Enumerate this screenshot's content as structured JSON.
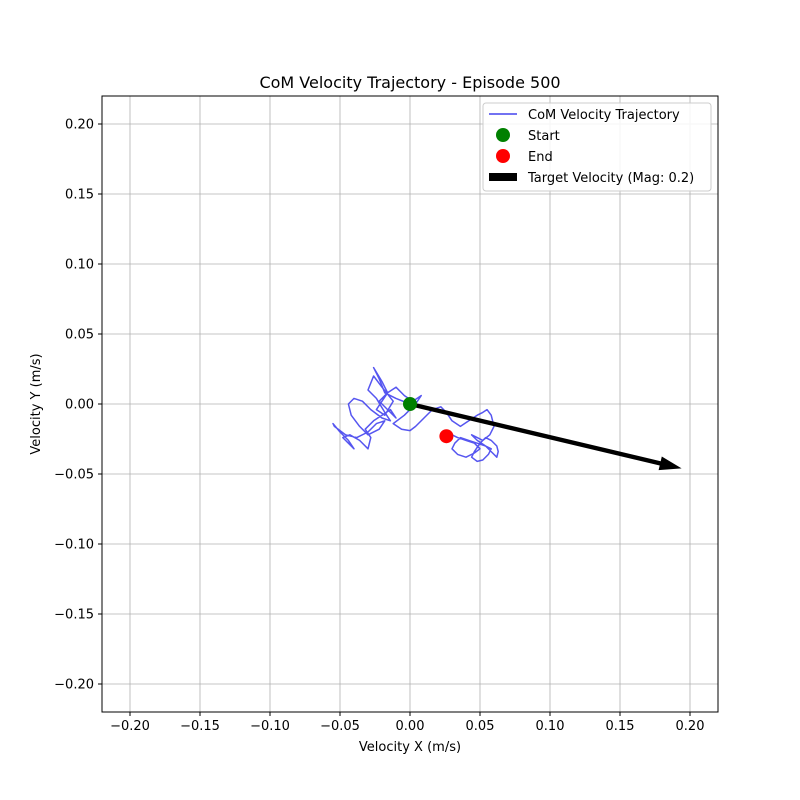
{
  "chart_data": {
    "type": "line",
    "title": "CoM Velocity Trajectory - Episode 500",
    "xlabel": "Velocity X (m/s)",
    "ylabel": "Velocity Y (m/s)",
    "xlim": [
      -0.22,
      0.22
    ],
    "ylim": [
      -0.22,
      0.22
    ],
    "grid": true,
    "legend_position": "top-right",
    "x_ticks": [
      -0.2,
      -0.15,
      -0.1,
      -0.05,
      0.0,
      0.05,
      0.1,
      0.15,
      0.2
    ],
    "y_ticks": [
      -0.2,
      -0.15,
      -0.1,
      -0.05,
      0.0,
      0.05,
      0.1,
      0.15,
      0.2
    ],
    "x_tick_labels": [
      "−0.20",
      "−0.15",
      "−0.10",
      "−0.05",
      "0.00",
      "0.05",
      "0.10",
      "0.15",
      "0.20"
    ],
    "y_tick_labels": [
      "−0.20",
      "−0.15",
      "−0.10",
      "−0.05",
      "0.00",
      "0.05",
      "0.10",
      "0.15",
      "0.20"
    ],
    "series": [
      {
        "name": "CoM Velocity Trajectory",
        "color": "#4444ee",
        "x": [
          0.0,
          -0.01,
          -0.018,
          -0.022,
          -0.026,
          -0.02,
          -0.016,
          -0.024,
          -0.018,
          -0.012,
          -0.02,
          -0.026,
          -0.03,
          -0.024,
          -0.018,
          -0.014,
          -0.02,
          -0.028,
          -0.034,
          -0.04,
          -0.044,
          -0.042,
          -0.036,
          -0.03,
          -0.022,
          -0.018,
          -0.024,
          -0.03,
          -0.038,
          -0.046,
          -0.054,
          -0.055,
          -0.05,
          -0.044,
          -0.04,
          -0.044,
          -0.048,
          -0.043,
          -0.036,
          -0.03,
          -0.028,
          -0.032,
          -0.026,
          -0.02,
          -0.014,
          -0.01,
          -0.016,
          -0.022,
          -0.016,
          -0.01,
          -0.004,
          0.002,
          0.008,
          0.004,
          -0.004,
          -0.012,
          -0.006,
          0.0,
          0.004,
          0.01,
          0.016,
          0.022,
          0.026,
          0.03,
          0.036,
          0.042,
          0.048,
          0.052,
          0.055,
          0.058,
          0.06,
          0.057,
          0.052,
          0.048,
          0.044,
          0.048,
          0.054,
          0.058,
          0.062,
          0.063,
          0.062,
          0.058,
          0.054,
          0.05,
          0.046,
          0.044,
          0.048,
          0.052,
          0.056,
          0.058,
          0.054,
          0.048,
          0.042,
          0.036,
          0.032,
          0.03,
          0.034,
          0.04,
          0.046,
          0.05,
          0.046,
          0.04,
          0.034,
          0.03,
          0.027,
          0.026
        ],
        "y": [
          0.0,
          0.004,
          0.008,
          0.018,
          0.026,
          0.016,
          0.008,
          -0.004,
          -0.008,
          0.002,
          0.012,
          0.02,
          0.01,
          0.004,
          -0.006,
          -0.012,
          -0.01,
          -0.004,
          0.002,
          0.004,
          0.0,
          -0.008,
          -0.016,
          -0.022,
          -0.018,
          -0.012,
          -0.014,
          -0.02,
          -0.024,
          -0.022,
          -0.016,
          -0.014,
          -0.02,
          -0.026,
          -0.032,
          -0.028,
          -0.024,
          -0.022,
          -0.026,
          -0.032,
          -0.024,
          -0.018,
          -0.012,
          -0.008,
          -0.004,
          -0.01,
          -0.004,
          0.002,
          0.008,
          0.012,
          0.006,
          0.002,
          0.006,
          0.0,
          -0.008,
          -0.014,
          -0.018,
          -0.019,
          -0.016,
          -0.01,
          -0.004,
          -0.002,
          -0.006,
          -0.012,
          -0.016,
          -0.012,
          -0.008,
          -0.006,
          -0.004,
          -0.008,
          -0.016,
          -0.022,
          -0.026,
          -0.024,
          -0.022,
          -0.026,
          -0.03,
          -0.034,
          -0.038,
          -0.034,
          -0.03,
          -0.026,
          -0.024,
          -0.028,
          -0.034,
          -0.038,
          -0.041,
          -0.04,
          -0.036,
          -0.032,
          -0.03,
          -0.028,
          -0.026,
          -0.024,
          -0.028,
          -0.032,
          -0.036,
          -0.038,
          -0.035,
          -0.032,
          -0.028,
          -0.026,
          -0.024,
          -0.022,
          -0.022,
          -0.023
        ]
      }
    ],
    "start": {
      "label": "Start",
      "x": 0.0,
      "y": 0.0,
      "color": "#008000"
    },
    "end": {
      "label": "End",
      "x": 0.026,
      "y": -0.023,
      "color": "#ff0000"
    },
    "target_velocity": {
      "label": "Target Velocity (Mag: 0.2)",
      "x0": 0.0,
      "y0": 0.0,
      "x1": 0.194,
      "y1": -0.046,
      "color": "#000000"
    }
  }
}
